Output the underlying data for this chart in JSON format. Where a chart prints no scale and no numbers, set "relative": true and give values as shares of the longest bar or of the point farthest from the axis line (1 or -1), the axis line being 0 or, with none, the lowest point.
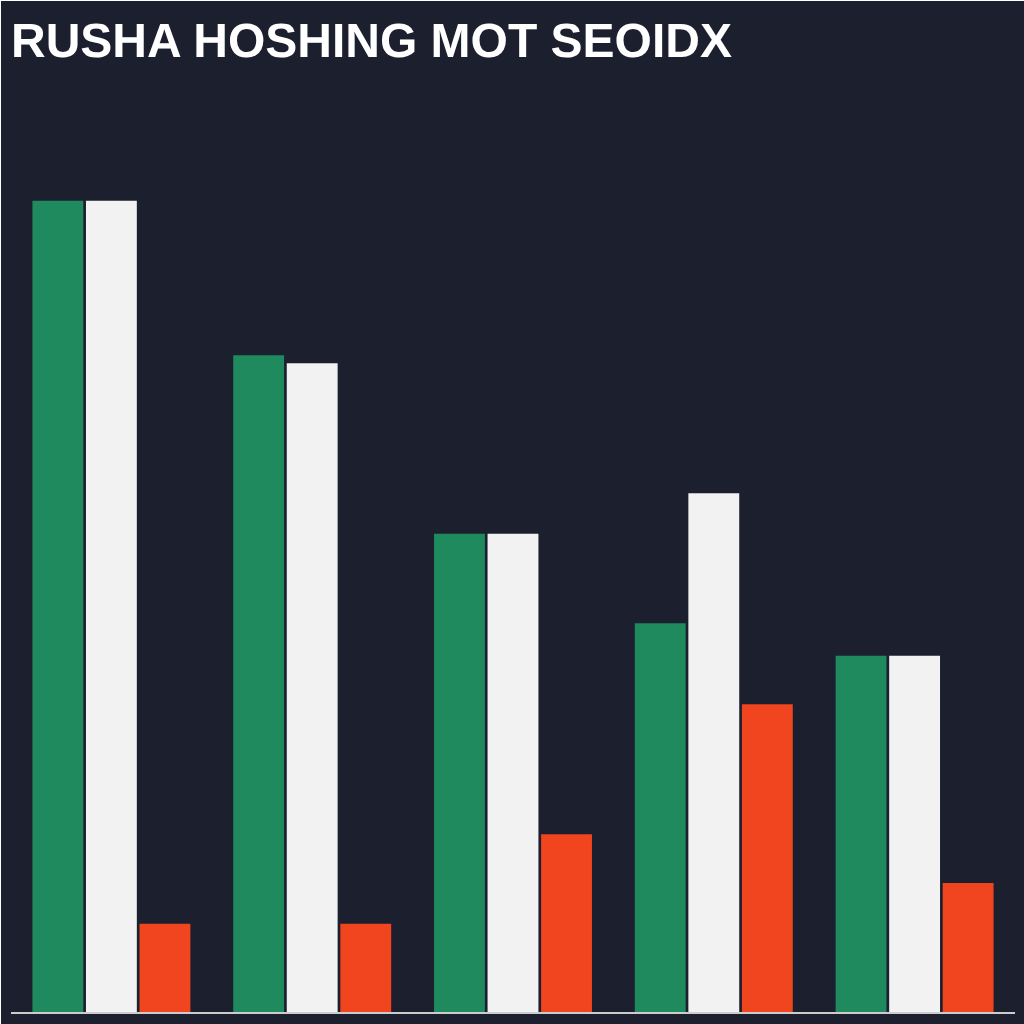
{
  "chart_data": {
    "type": "bar",
    "title": "RUSHA HOSHING MOT SEOIDX",
    "relative": true,
    "categories": [
      null,
      null,
      null,
      null,
      null
    ],
    "series": [
      {
        "color": "#1e8a5e",
        "values": [
          1.0,
          0.81,
          0.59,
          0.48,
          0.44
        ]
      },
      {
        "color": "#f2f2f2",
        "values": [
          1.0,
          0.8,
          0.59,
          0.64,
          0.44
        ]
      },
      {
        "color": "#f0451e",
        "values": [
          0.11,
          0.11,
          0.22,
          0.38,
          0.16
        ]
      }
    ]
  }
}
